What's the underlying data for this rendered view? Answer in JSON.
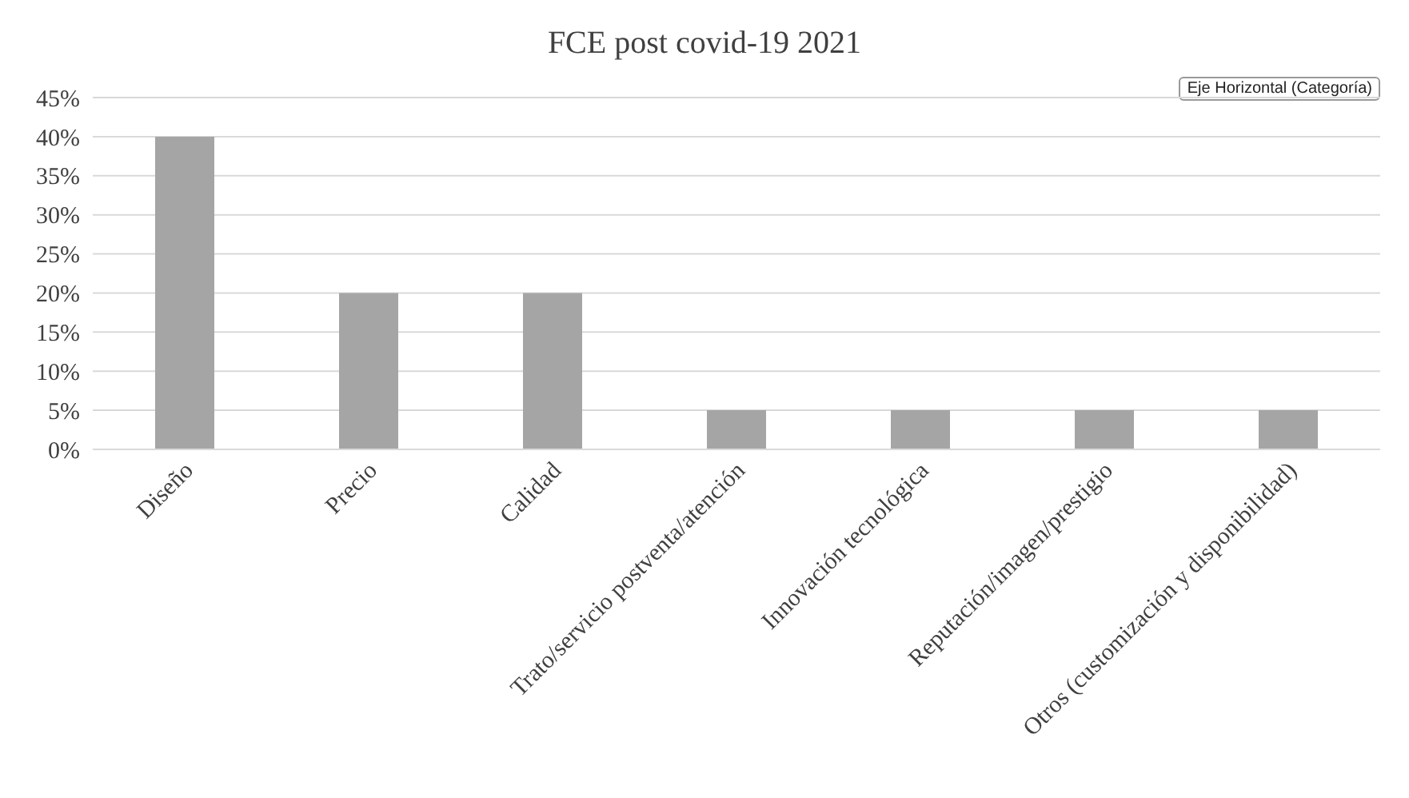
{
  "chart_data": {
    "type": "bar",
    "title": "FCE post covid-19 2021",
    "categories": [
      "Diseño",
      "Precio",
      "Calidad",
      "Trato/servicio postventa/atención",
      "Innovación tecnológica",
      "Reputación/imagen/prestigio",
      "Otros (customización y disponibilidad)"
    ],
    "values": [
      40,
      20,
      20,
      5,
      5,
      5,
      5
    ],
    "color": "#a5a5a5",
    "ylim": [
      0,
      45
    ],
    "yticks": [
      {
        "value": 0,
        "label": "0%"
      },
      {
        "value": 5,
        "label": "5%"
      },
      {
        "value": 10,
        "label": "10%"
      },
      {
        "value": 15,
        "label": "15%"
      },
      {
        "value": 20,
        "label": "20%"
      },
      {
        "value": 25,
        "label": "25%"
      },
      {
        "value": 30,
        "label": "30%"
      },
      {
        "value": 35,
        "label": "35%"
      },
      {
        "value": 40,
        "label": "40%"
      },
      {
        "value": 45,
        "label": "45%"
      }
    ],
    "grid": "y",
    "legend": false,
    "annotations": [
      "Eje Horizontal (Categoría)"
    ]
  }
}
